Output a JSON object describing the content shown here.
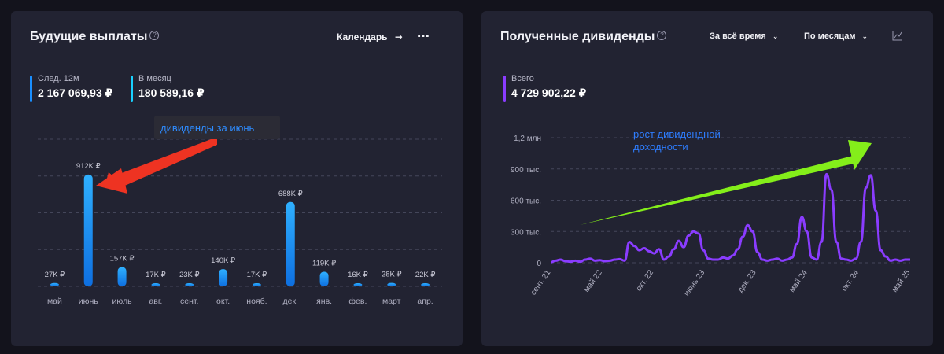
{
  "colors": {
    "panel_bg": "#222332",
    "page_bg": "#13131c",
    "bar_blue": "#1a8fff",
    "line_purple": "#8a3cff",
    "arrow_red": "#ee3322",
    "arrow_green": "#84ee1a",
    "annotation_blue": "#2e8cff"
  },
  "left_panel": {
    "title": "Будущие выплаты",
    "help_icon": "?",
    "calendar_label": "Календарь",
    "calendar_icon": "arrow-right-icon",
    "more_icon": "more-dots-icon",
    "stats": [
      {
        "label": "След. 12м",
        "value": "2 167 069,93 ₽",
        "color": "#1a8fff"
      },
      {
        "label": "В месяц",
        "value": "180 589,16 ₽",
        "color": "#19d0ff"
      }
    ],
    "annotation": "дивиденды за июнь"
  },
  "right_panel": {
    "title": "Полученные дивиденды",
    "help_icon": "?",
    "period_dropdown": "За всё время",
    "grouping_dropdown": "По месяцам",
    "chart_icon": "line-chart-icon",
    "stats": [
      {
        "label": "Всего",
        "value": "4 729 902,22 ₽",
        "color": "#8a3cff"
      }
    ],
    "annotation": "рост дивидендной доходности"
  },
  "chart_data": [
    {
      "type": "bar",
      "categories": [
        "май",
        "июнь",
        "июль",
        "авг.",
        "сент.",
        "окт.",
        "нояб.",
        "дек.",
        "янв.",
        "фев.",
        "март",
        "апр."
      ],
      "values": [
        27,
        912,
        157,
        17,
        23,
        140,
        17,
        688,
        119,
        16,
        28,
        22
      ],
      "data_labels": [
        "27K ₽",
        "912K ₽",
        "157K ₽",
        "17K ₽",
        "23K ₽",
        "140K ₽",
        "17K ₽",
        "688K ₽",
        "119K ₽",
        "16K ₽",
        "28K ₽",
        "22K ₽"
      ],
      "ylim": [
        0,
        1200
      ],
      "grid": true
    },
    {
      "type": "line",
      "x_tick_labels": [
        "сент. 21",
        "май 22",
        "окт. 22",
        "июнь 23",
        "дек. 23",
        "май 24",
        "окт. 24",
        "май 25"
      ],
      "y_tick_labels": [
        "0",
        "300 тыс.",
        "600 тыс.",
        "900 тыс.",
        "1,2 млн"
      ],
      "yticks": [
        0,
        300000,
        600000,
        900000,
        1200000
      ],
      "ylim": [
        0,
        1200000
      ],
      "grid": true,
      "series": [
        {
          "values": [
            5000,
            20000,
            30000,
            15000,
            10000,
            20000,
            10000,
            30000,
            40000,
            20000,
            25000,
            15000,
            20000,
            30000,
            35000,
            20000,
            200000,
            160000,
            120000,
            140000,
            110000,
            90000,
            130000,
            30000,
            60000,
            130000,
            210000,
            150000,
            260000,
            300000,
            280000,
            120000,
            40000,
            30000,
            30000,
            50000,
            40000,
            70000,
            130000,
            250000,
            360000,
            300000,
            100000,
            30000,
            20000,
            30000,
            40000,
            20000,
            30000,
            50000,
            180000,
            440000,
            300000,
            50000,
            30000,
            200000,
            850000,
            700000,
            200000,
            40000,
            30000,
            20000,
            40000,
            200000,
            720000,
            840000,
            500000,
            120000,
            60000,
            20000,
            30000,
            20000,
            30000,
            30000
          ]
        }
      ]
    }
  ]
}
